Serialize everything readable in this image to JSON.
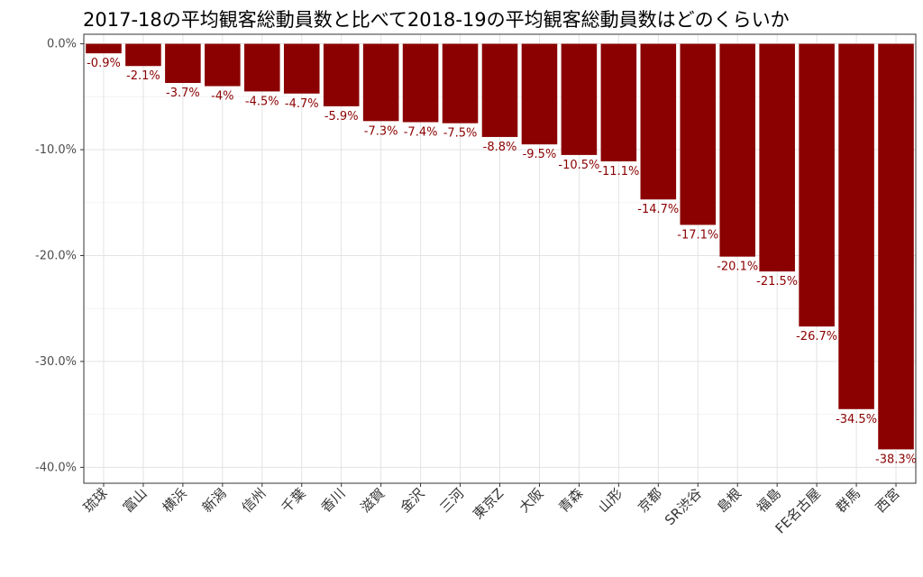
{
  "chart_data": {
    "type": "bar",
    "title": "2017-18の平均観客総動員数と比べて2018-19の平均観客総動員数はどのくらいか",
    "xlabel": "",
    "ylabel": "",
    "categories": [
      "琉球",
      "富山",
      "横浜",
      "新潟",
      "信州",
      "千葉",
      "香川",
      "滋賀",
      "金沢",
      "三河",
      "東京Z",
      "大阪",
      "青森",
      "山形",
      "京都",
      "SR渋谷",
      "島根",
      "福島",
      "FE名古屋",
      "群馬",
      "西宮"
    ],
    "values": [
      -0.9,
      -2.1,
      -3.7,
      -4,
      -4.5,
      -4.7,
      -5.9,
      -7.3,
      -7.4,
      -7.5,
      -8.8,
      -9.5,
      -10.5,
      -11.1,
      -14.7,
      -17.1,
      -20.1,
      -21.5,
      -26.7,
      -34.5,
      -38.3
    ],
    "value_labels": [
      "-0.9%",
      "-2.1%",
      "-3.7%",
      "-4%",
      "-4.5%",
      "-4.7%",
      "-5.9%",
      "-7.3%",
      "-7.4%",
      "-7.5%",
      "-8.8%",
      "-9.5%",
      "-10.5%",
      "-11.1%",
      "-14.7%",
      "-17.1%",
      "-20.1%",
      "-21.5%",
      "-26.7%",
      "-34.5%",
      "-38.3%"
    ],
    "yticks": [
      0,
      -10,
      -20,
      -30,
      -40
    ],
    "ytick_labels": [
      "0.0%",
      "-10.0%",
      "-20.0%",
      "-30.0%",
      "-40.0%"
    ],
    "ylim": [
      -41.5,
      0.9
    ],
    "grid": true,
    "bar_color": "#8b0000",
    "label_color": "#8b0000"
  }
}
